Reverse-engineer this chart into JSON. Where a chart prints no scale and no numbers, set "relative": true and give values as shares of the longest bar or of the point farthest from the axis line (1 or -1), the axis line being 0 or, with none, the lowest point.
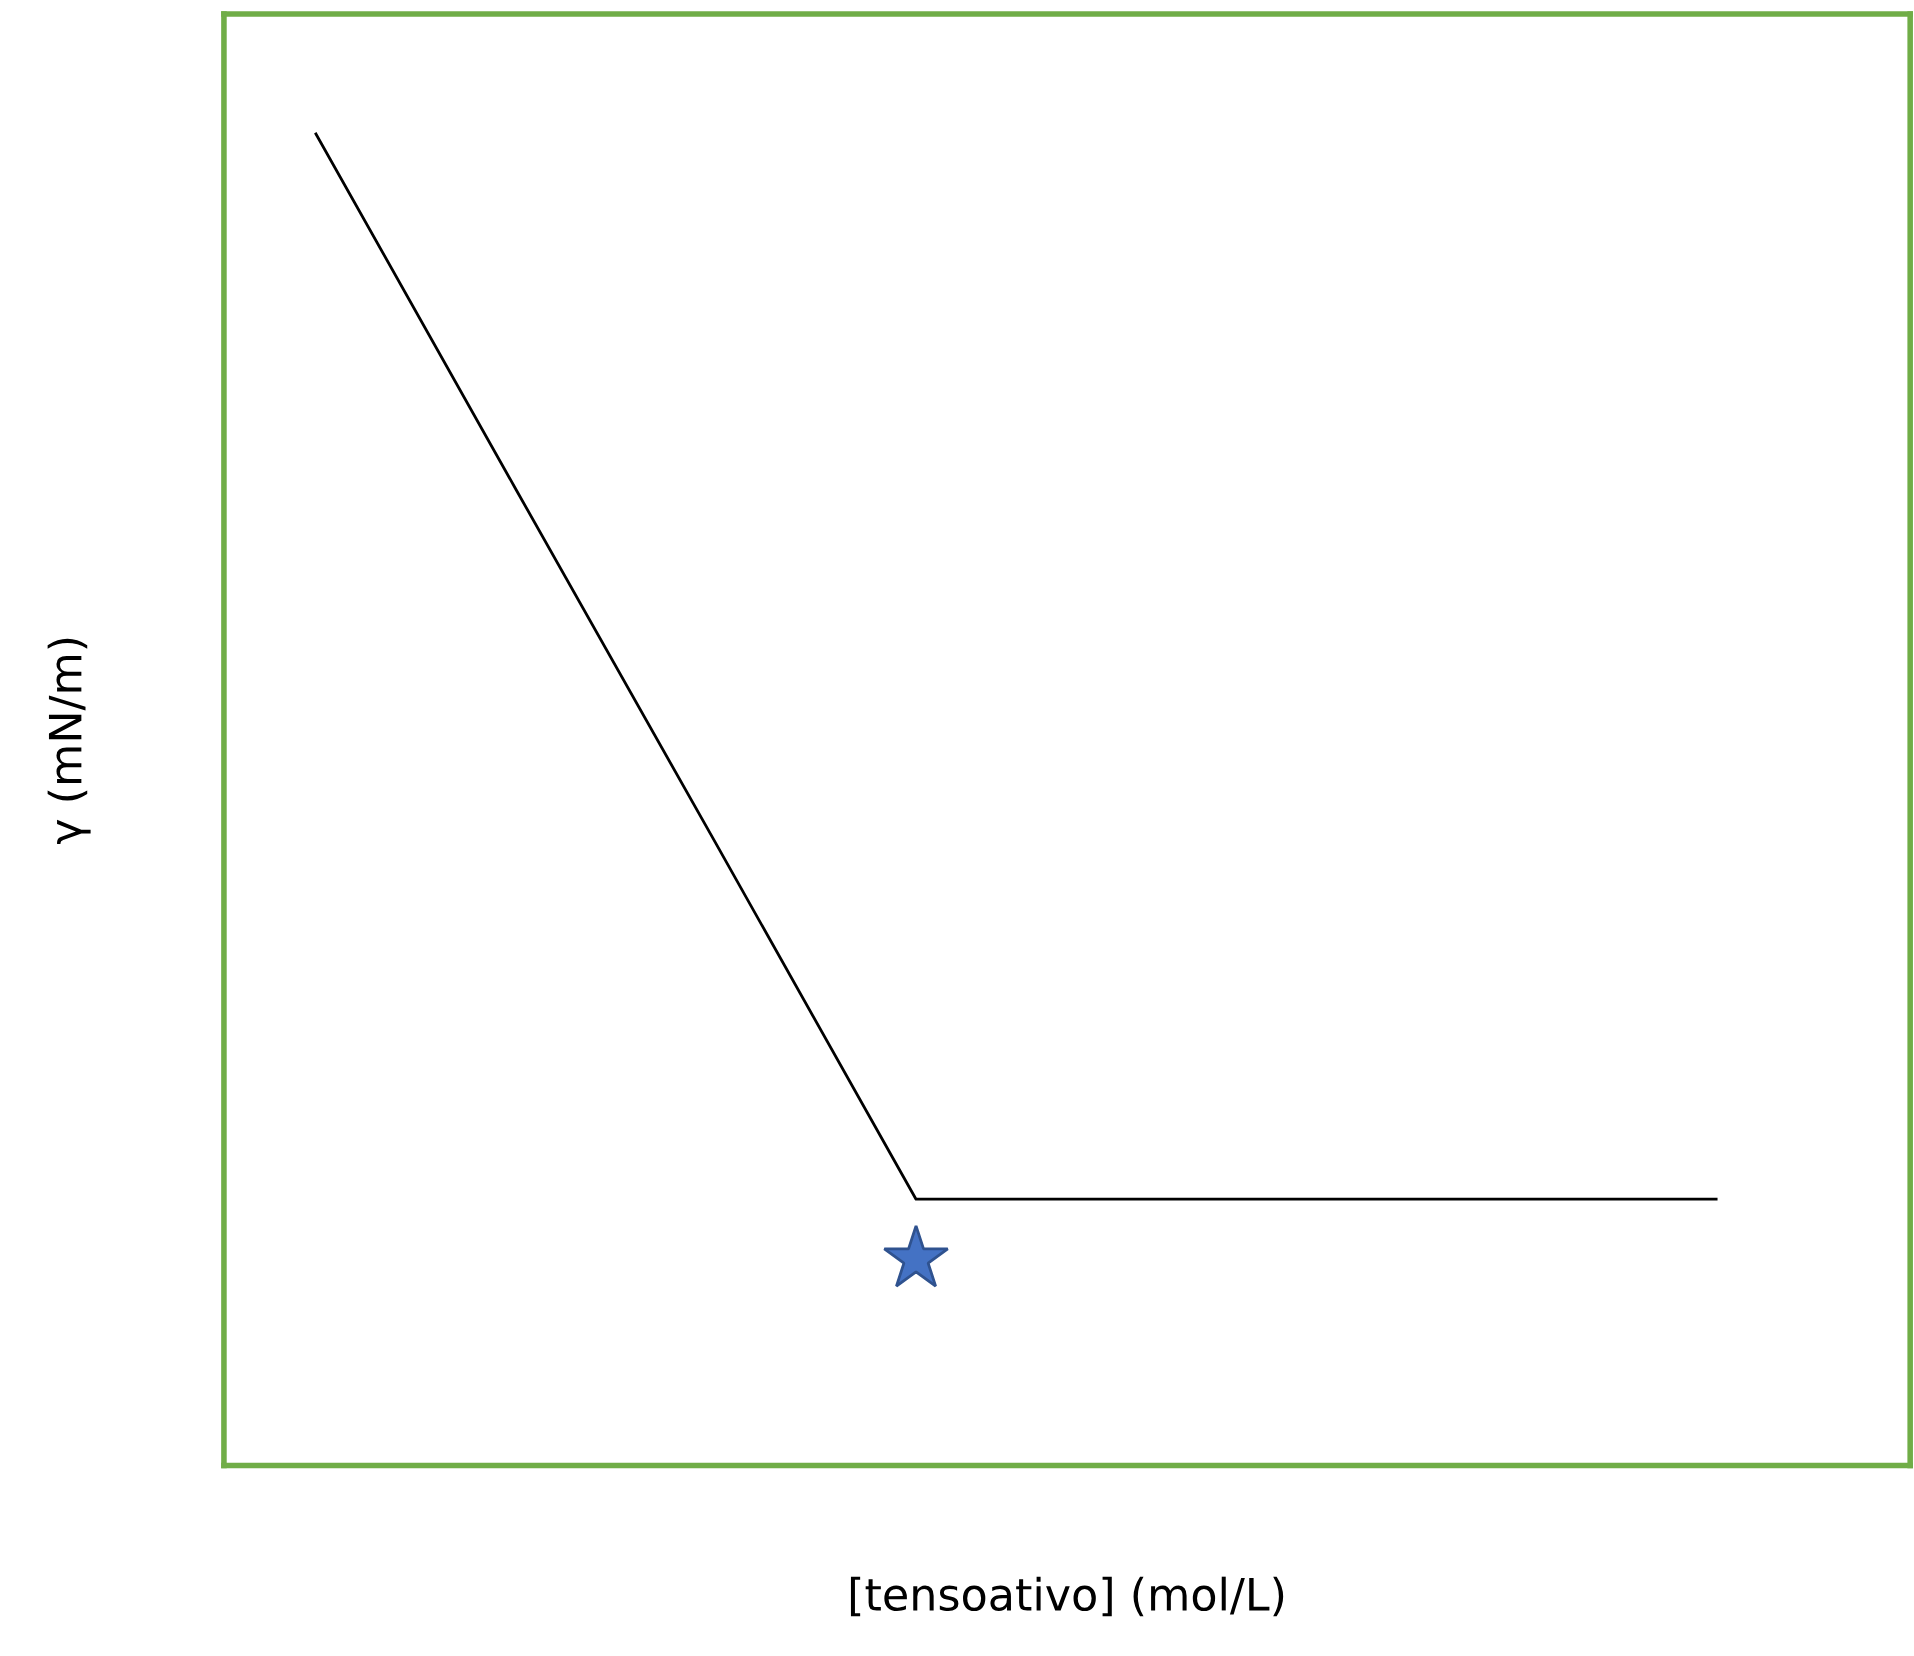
{
  "chart_data": {
    "type": "line",
    "relative": true,
    "xlabel": "[tensoativo] (mol/L)",
    "ylabel": "γ (mN/m)",
    "tick_labels": false,
    "grid": false,
    "legend": false,
    "marker": "none",
    "line_style": "solid",
    "categories": [
      null,
      null,
      null,
      null,
      null,
      null,
      null,
      null
    ],
    "series": [
      {
        "color": "#000000",
        "values": [
          1,
          0.733,
          0.467,
          0.2,
          0.2,
          0.2,
          0.2,
          0.2
        ]
      }
    ]
  }
}
